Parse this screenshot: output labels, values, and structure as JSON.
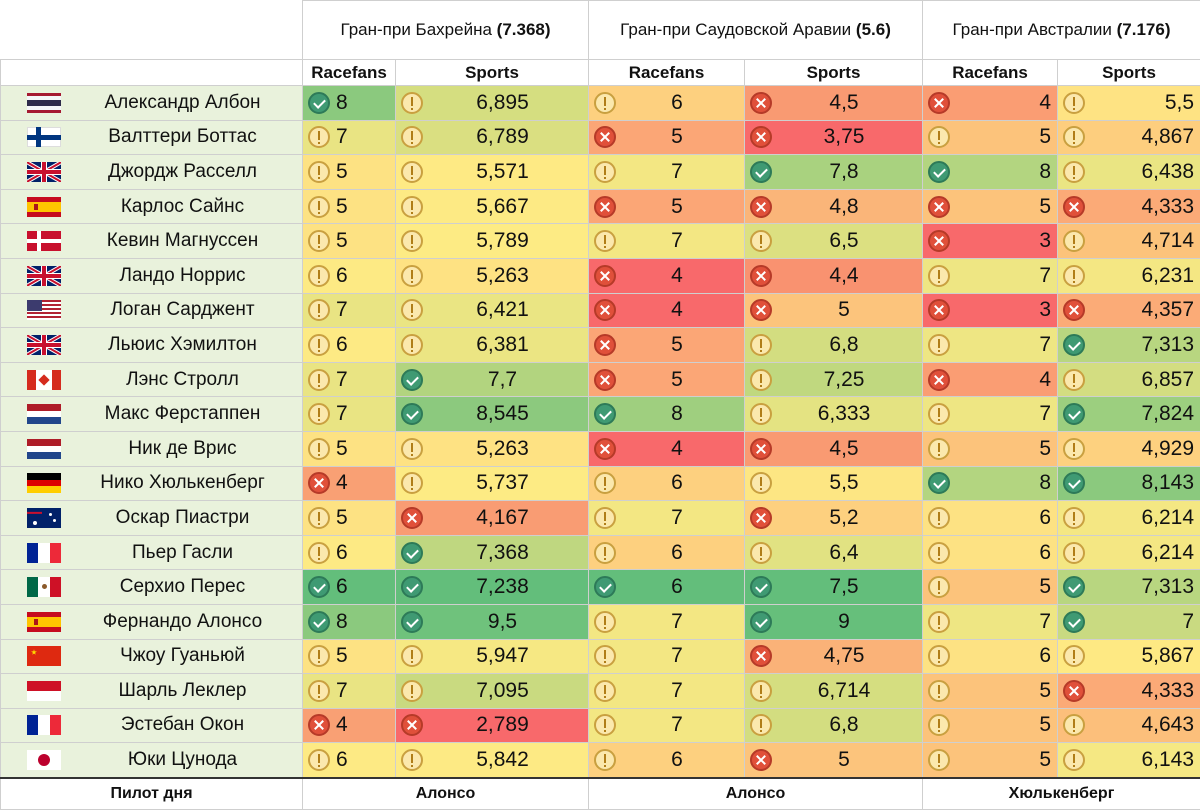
{
  "gps": [
    {
      "name": "Гран-при Бахрейна",
      "rating": "(7.368)"
    },
    {
      "name": "Гран-при Саудовской Аравии",
      "rating": "(5.6)"
    },
    {
      "name": "Гран-при Австралии",
      "rating": "(7.176)"
    }
  ],
  "subheaders": {
    "racefans": "Racefans",
    "sports": "Sports"
  },
  "footer": {
    "label": "Пилот дня",
    "winners": [
      "Алонсо",
      "Алонсо",
      "Хюлькенберг"
    ]
  },
  "icon_names": {
    "ok": "check-circle-icon",
    "warn": "exclamation-circle-icon",
    "bad": "cross-circle-icon"
  },
  "colors": {
    "name_bg": "#e9f2dc",
    "green_dark": "#63be7b",
    "yellow": "#ffeb84",
    "red": "#f8696b"
  },
  "drivers": [
    {
      "name": "Александр Албон",
      "flag": "thailand",
      "cells": [
        {
          "v": "8",
          "i": "ok",
          "bg": "#8bc97e"
        },
        {
          "v": "6,895",
          "i": "warn",
          "bg": "#d5de80"
        },
        {
          "v": "6",
          "i": "warn",
          "bg": "#fdd07f"
        },
        {
          "v": "4,5",
          "i": "bad",
          "bg": "#f99a72"
        },
        {
          "v": "4",
          "i": "bad",
          "bg": "#fa9d73"
        },
        {
          "v": "5,5",
          "i": "warn",
          "bg": "#fee383"
        }
      ]
    },
    {
      "name": "Валттери Боттас",
      "flag": "finland",
      "cells": [
        {
          "v": "7",
          "i": "warn",
          "bg": "#e9e483"
        },
        {
          "v": "6,789",
          "i": "warn",
          "bg": "#dadf81"
        },
        {
          "v": "5",
          "i": "bad",
          "bg": "#fba676"
        },
        {
          "v": "3,75",
          "i": "bad",
          "bg": "#f8696b"
        },
        {
          "v": "5",
          "i": "warn",
          "bg": "#fcc37b"
        },
        {
          "v": "4,867",
          "i": "warn",
          "bg": "#fdce7e"
        }
      ]
    },
    {
      "name": "Джордж Расселл",
      "flag": "uk",
      "cells": [
        {
          "v": "5",
          "i": "warn",
          "bg": "#fde283"
        },
        {
          "v": "5,571",
          "i": "warn",
          "bg": "#feea84"
        },
        {
          "v": "7",
          "i": "warn",
          "bg": "#f3e783"
        },
        {
          "v": "7,8",
          "i": "ok",
          "bg": "#a9d27f"
        },
        {
          "v": "8",
          "i": "ok",
          "bg": "#b3d580"
        },
        {
          "v": "6,438",
          "i": "warn",
          "bg": "#eae583"
        }
      ]
    },
    {
      "name": "Карлос Сайнс",
      "flag": "spain",
      "cells": [
        {
          "v": "5",
          "i": "warn",
          "bg": "#fde283"
        },
        {
          "v": "5,667",
          "i": "warn",
          "bg": "#fdea84"
        },
        {
          "v": "5",
          "i": "bad",
          "bg": "#fba676"
        },
        {
          "v": "4,8",
          "i": "bad",
          "bg": "#fab579"
        },
        {
          "v": "5",
          "i": "bad",
          "bg": "#fcc37b"
        },
        {
          "v": "4,333",
          "i": "bad",
          "bg": "#fbaa77"
        }
      ]
    },
    {
      "name": "Кевин Магнуссен",
      "flag": "denmark",
      "cells": [
        {
          "v": "5",
          "i": "warn",
          "bg": "#fde283"
        },
        {
          "v": "5,789",
          "i": "warn",
          "bg": "#fdeb84"
        },
        {
          "v": "7",
          "i": "warn",
          "bg": "#f3e783"
        },
        {
          "v": "6,5",
          "i": "warn",
          "bg": "#dce081"
        },
        {
          "v": "3",
          "i": "bad",
          "bg": "#f8696b"
        },
        {
          "v": "4,714",
          "i": "warn",
          "bg": "#fcc37b"
        }
      ]
    },
    {
      "name": "Ландо Норрис",
      "flag": "uk",
      "cells": [
        {
          "v": "6",
          "i": "warn",
          "bg": "#fdea84"
        },
        {
          "v": "5,263",
          "i": "warn",
          "bg": "#fee283"
        },
        {
          "v": "4",
          "i": "bad",
          "bg": "#f8696b"
        },
        {
          "v": "4,4",
          "i": "bad",
          "bg": "#f99270"
        },
        {
          "v": "7",
          "i": "warn",
          "bg": "#eee683"
        },
        {
          "v": "6,231",
          "i": "warn",
          "bg": "#f4e783"
        }
      ]
    },
    {
      "name": "Логан Сарджент",
      "flag": "usa",
      "cells": [
        {
          "v": "7",
          "i": "warn",
          "bg": "#e9e483"
        },
        {
          "v": "6,421",
          "i": "warn",
          "bg": "#eae583"
        },
        {
          "v": "4",
          "i": "bad",
          "bg": "#f8696b"
        },
        {
          "v": "5",
          "i": "bad",
          "bg": "#fcc47c"
        },
        {
          "v": "3",
          "i": "bad",
          "bg": "#f8696b"
        },
        {
          "v": "4,357",
          "i": "bad",
          "bg": "#fbab77"
        }
      ]
    },
    {
      "name": "Льюис Хэмилтон",
      "flag": "uk",
      "cells": [
        {
          "v": "6",
          "i": "warn",
          "bg": "#fdea84"
        },
        {
          "v": "6,381",
          "i": "warn",
          "bg": "#ebe583"
        },
        {
          "v": "5",
          "i": "bad",
          "bg": "#fba676"
        },
        {
          "v": "6,8",
          "i": "warn",
          "bg": "#d3dd80"
        },
        {
          "v": "7",
          "i": "warn",
          "bg": "#eee683"
        },
        {
          "v": "7,313",
          "i": "ok",
          "bg": "#b8d680"
        }
      ]
    },
    {
      "name": "Лэнс Стролл",
      "flag": "canada",
      "cells": [
        {
          "v": "7",
          "i": "warn",
          "bg": "#e9e483"
        },
        {
          "v": "7,7",
          "i": "ok",
          "bg": "#b2d47f"
        },
        {
          "v": "5",
          "i": "bad",
          "bg": "#fba676"
        },
        {
          "v": "7,25",
          "i": "warn",
          "bg": "#c0d87f"
        },
        {
          "v": "4",
          "i": "bad",
          "bg": "#fa9d73"
        },
        {
          "v": "6,857",
          "i": "warn",
          "bg": "#d3dd81"
        }
      ]
    },
    {
      "name": "Макс Ферстаппен",
      "flag": "netherlands",
      "cells": [
        {
          "v": "7",
          "i": "warn",
          "bg": "#e9e483"
        },
        {
          "v": "8,545",
          "i": "ok",
          "bg": "#8cc97e"
        },
        {
          "v": "8",
          "i": "ok",
          "bg": "#9fcf7f"
        },
        {
          "v": "6,333",
          "i": "warn",
          "bg": "#e4e382"
        },
        {
          "v": "7",
          "i": "warn",
          "bg": "#eee683"
        },
        {
          "v": "7,824",
          "i": "ok",
          "bg": "#9ccf7f"
        }
      ]
    },
    {
      "name": "Ник де Врис",
      "flag": "netherlands",
      "cells": [
        {
          "v": "5",
          "i": "warn",
          "bg": "#fde283"
        },
        {
          "v": "5,263",
          "i": "warn",
          "bg": "#fee283"
        },
        {
          "v": "4",
          "i": "bad",
          "bg": "#f8696b"
        },
        {
          "v": "4,5",
          "i": "bad",
          "bg": "#f99a72"
        },
        {
          "v": "5",
          "i": "warn",
          "bg": "#fcc37b"
        },
        {
          "v": "4,929",
          "i": "warn",
          "bg": "#fdd17f"
        }
      ]
    },
    {
      "name": "Нико Хюлькенберг",
      "flag": "germany",
      "cells": [
        {
          "v": "4",
          "i": "bad",
          "bg": "#f9a074"
        },
        {
          "v": "5,737",
          "i": "warn",
          "bg": "#fdeb84"
        },
        {
          "v": "6",
          "i": "warn",
          "bg": "#fdd07f"
        },
        {
          "v": "5,5",
          "i": "warn",
          "bg": "#fde683"
        },
        {
          "v": "8",
          "i": "ok",
          "bg": "#b3d580"
        },
        {
          "v": "8,143",
          "i": "ok",
          "bg": "#8bc97e"
        }
      ]
    },
    {
      "name": "Оскар Пиастри",
      "flag": "australia",
      "cells": [
        {
          "v": "5",
          "i": "warn",
          "bg": "#fde283"
        },
        {
          "v": "4,167",
          "i": "bad",
          "bg": "#f99c73"
        },
        {
          "v": "7",
          "i": "warn",
          "bg": "#f3e783"
        },
        {
          "v": "5,2",
          "i": "bad",
          "bg": "#fdd07f"
        },
        {
          "v": "6",
          "i": "warn",
          "bg": "#fde283"
        },
        {
          "v": "6,214",
          "i": "warn",
          "bg": "#f4e783"
        }
      ]
    },
    {
      "name": "Пьер Гасли",
      "flag": "france",
      "cells": [
        {
          "v": "6",
          "i": "warn",
          "bg": "#fdea84"
        },
        {
          "v": "7,368",
          "i": "ok",
          "bg": "#bfd780"
        },
        {
          "v": "6",
          "i": "warn",
          "bg": "#fdd07f"
        },
        {
          "v": "6,4",
          "i": "warn",
          "bg": "#e1e282"
        },
        {
          "v": "6",
          "i": "warn",
          "bg": "#fde283"
        },
        {
          "v": "6,214",
          "i": "warn",
          "bg": "#f4e783"
        }
      ]
    },
    {
      "name": "Серхио Перес",
      "flag": "mexico",
      "cells": [
        {
          "v": "6",
          "i": "ok",
          "bg": "#63be7b"
        },
        {
          "v": "7,238",
          "i": "ok",
          "bg": "#63be7b"
        },
        {
          "v": "6",
          "i": "ok",
          "bg": "#63be7b"
        },
        {
          "v": "7,5",
          "i": "ok",
          "bg": "#63be7b"
        },
        {
          "v": "5",
          "i": "warn",
          "bg": "#fcc37b"
        },
        {
          "v": "7,313",
          "i": "ok",
          "bg": "#b8d680"
        }
      ]
    },
    {
      "name": "Фернандо Алонсо",
      "flag": "spain",
      "cells": [
        {
          "v": "8",
          "i": "ok",
          "bg": "#8bc97e"
        },
        {
          "v": "9,5",
          "i": "ok",
          "bg": "#6fc27c"
        },
        {
          "v": "7",
          "i": "warn",
          "bg": "#f3e783"
        },
        {
          "v": "9",
          "i": "ok",
          "bg": "#66bf7b"
        },
        {
          "v": "7",
          "i": "warn",
          "bg": "#eee683"
        },
        {
          "v": "7",
          "i": "ok",
          "bg": "#c9da81"
        }
      ]
    },
    {
      "name": "Чжоу Гуаньюй",
      "flag": "china",
      "cells": [
        {
          "v": "5",
          "i": "warn",
          "bg": "#fde283"
        },
        {
          "v": "5,947",
          "i": "warn",
          "bg": "#f6e883"
        },
        {
          "v": "7",
          "i": "warn",
          "bg": "#f3e783"
        },
        {
          "v": "4,75",
          "i": "bad",
          "bg": "#fab278"
        },
        {
          "v": "6",
          "i": "warn",
          "bg": "#fde283"
        },
        {
          "v": "5,867",
          "i": "warn",
          "bg": "#fee983"
        }
      ]
    },
    {
      "name": "Шарль Леклер",
      "flag": "monaco",
      "cells": [
        {
          "v": "7",
          "i": "warn",
          "bg": "#e9e483"
        },
        {
          "v": "7,095",
          "i": "warn",
          "bg": "#c9da80"
        },
        {
          "v": "7",
          "i": "warn",
          "bg": "#f3e783"
        },
        {
          "v": "6,714",
          "i": "warn",
          "bg": "#d5de80"
        },
        {
          "v": "5",
          "i": "warn",
          "bg": "#fcc37b"
        },
        {
          "v": "4,333",
          "i": "bad",
          "bg": "#fbaa77"
        }
      ]
    },
    {
      "name": "Эстебан Окон",
      "flag": "france",
      "cells": [
        {
          "v": "4",
          "i": "bad",
          "bg": "#f9a074"
        },
        {
          "v": "2,789",
          "i": "bad",
          "bg": "#f8696b"
        },
        {
          "v": "7",
          "i": "warn",
          "bg": "#f3e783"
        },
        {
          "v": "6,8",
          "i": "warn",
          "bg": "#d3dd80"
        },
        {
          "v": "5",
          "i": "warn",
          "bg": "#fcc37b"
        },
        {
          "v": "4,643",
          "i": "warn",
          "bg": "#fcbf7b"
        }
      ]
    },
    {
      "name": "Юки Цунода",
      "flag": "japan",
      "cells": [
        {
          "v": "6",
          "i": "warn",
          "bg": "#fdea84"
        },
        {
          "v": "5,842",
          "i": "warn",
          "bg": "#fdea84"
        },
        {
          "v": "6",
          "i": "warn",
          "bg": "#fdd07f"
        },
        {
          "v": "5",
          "i": "bad",
          "bg": "#fcc47c"
        },
        {
          "v": "5",
          "i": "warn",
          "bg": "#fcc37b"
        },
        {
          "v": "6,143",
          "i": "warn",
          "bg": "#f5e883"
        }
      ]
    }
  ]
}
